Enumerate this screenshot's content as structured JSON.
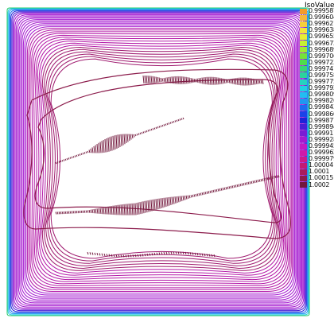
{
  "chart_data": {
    "type": "contour",
    "title": "",
    "legend_title": "IsoValue",
    "legend_position": "right",
    "levels": [
      {
        "label": "0.999587",
        "color": "#f39b2b"
      },
      {
        "label": "0.999604",
        "color": "#f5b73a"
      },
      {
        "label": "0.999621",
        "color": "#f5cf3b"
      },
      {
        "label": "0.999638",
        "color": "#f2e43a"
      },
      {
        "label": "0.999655",
        "color": "#e6ee34"
      },
      {
        "label": "0.999672",
        "color": "#c6ef33"
      },
      {
        "label": "0.999689",
        "color": "#9eea34"
      },
      {
        "label": "0.999706",
        "color": "#74e33a"
      },
      {
        "label": "0.999723",
        "color": "#4fdc4b"
      },
      {
        "label": "0.999741",
        "color": "#38d675"
      },
      {
        "label": "0.999758",
        "color": "#2bd39c"
      },
      {
        "label": "0.999775",
        "color": "#26d2c0"
      },
      {
        "label": "0.999792",
        "color": "#24cfe0"
      },
      {
        "label": "0.999809",
        "color": "#22bef0"
      },
      {
        "label": "0.999826",
        "color": "#1f98f0"
      },
      {
        "label": "0.999843",
        "color": "#1d6cf0"
      },
      {
        "label": "0.999860",
        "color": "#1b43e8"
      },
      {
        "label": "0.999877",
        "color": "#1e24d8"
      },
      {
        "label": "0.999894",
        "color": "#4a1fd6"
      },
      {
        "label": "0.999911",
        "color": "#7a1cd4"
      },
      {
        "label": "0.999928",
        "color": "#a51ad0"
      },
      {
        "label": "0.999945",
        "color": "#c21ac4"
      },
      {
        "label": "0.999962",
        "color": "#cf1aa8"
      },
      {
        "label": "0.999979",
        "color": "#cc1a8c"
      },
      {
        "label": "1.00004",
        "color": "#c21a74"
      },
      {
        "label": "1.0001",
        "color": "#aa1c5c"
      },
      {
        "label": "1.00015",
        "color": "#8c1c4c"
      },
      {
        "label": "1.0002",
        "color": "#72183c"
      }
    ]
  }
}
